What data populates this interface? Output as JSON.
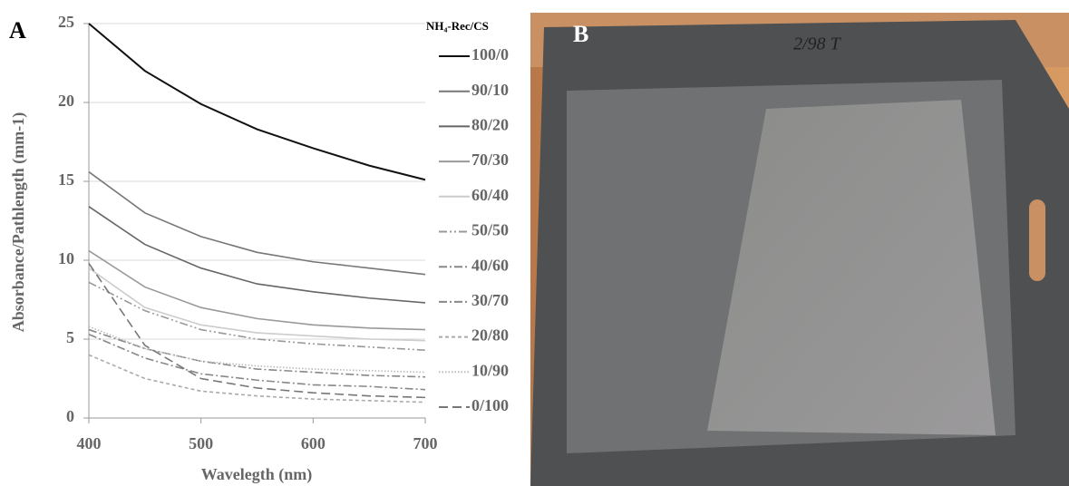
{
  "chart_data": {
    "type": "line",
    "panel_label": "A",
    "x_label": "Wavelegth (nm)",
    "y_label": "Absorbance/Pathlength (mm-1)",
    "legend_title": "NH₄-Rec/CS",
    "x": [
      400,
      450,
      500,
      550,
      600,
      650,
      700
    ],
    "xlim": [
      400,
      700
    ],
    "xticks": [
      400,
      500,
      600,
      700
    ],
    "ylim": [
      0,
      25
    ],
    "yticks": [
      0,
      5,
      10,
      15,
      20,
      25
    ],
    "grid": true,
    "legend": "right",
    "series": [
      {
        "name": "100/0",
        "color": "#111111",
        "dash": "solid",
        "values": [
          25,
          22,
          19.9,
          18.3,
          17.1,
          16.0,
          15.1
        ]
      },
      {
        "name": "90/10",
        "color": "#777777",
        "dash": "solid",
        "values": [
          15.6,
          13.0,
          11.5,
          10.5,
          9.9,
          9.5,
          9.1
        ]
      },
      {
        "name": "80/20",
        "color": "#666666",
        "dash": "solid",
        "values": [
          13.4,
          11.0,
          9.5,
          8.5,
          8.0,
          7.6,
          7.3
        ]
      },
      {
        "name": "70/30",
        "color": "#999999",
        "dash": "solid",
        "values": [
          10.6,
          8.3,
          7.0,
          6.3,
          5.9,
          5.7,
          5.6
        ]
      },
      {
        "name": "60/40",
        "color": "#cccccc",
        "dash": "solid",
        "values": [
          9.5,
          7.0,
          5.9,
          5.4,
          5.2,
          5.0,
          4.9
        ]
      },
      {
        "name": "50/50",
        "color": "#999999",
        "dash": "dashdotdot",
        "values": [
          8.6,
          6.8,
          5.6,
          5.0,
          4.7,
          4.5,
          4.3
        ]
      },
      {
        "name": "40/60",
        "color": "#888888",
        "dash": "dashdot",
        "values": [
          5.6,
          4.4,
          3.6,
          3.1,
          2.9,
          2.7,
          2.6
        ]
      },
      {
        "name": "30/70",
        "color": "#888888",
        "dash": "dashdot",
        "values": [
          5.3,
          3.8,
          2.8,
          2.4,
          2.1,
          2.0,
          1.8
        ]
      },
      {
        "name": "20/80",
        "color": "#aaaaaa",
        "dash": "dashed",
        "values": [
          4.0,
          2.5,
          1.7,
          1.4,
          1.2,
          1.1,
          1.0
        ]
      },
      {
        "name": "10/90",
        "color": "#bbbbbb",
        "dash": "dotted",
        "values": [
          5.8,
          4.4,
          3.6,
          3.3,
          3.1,
          3.0,
          2.9
        ]
      },
      {
        "name": "0/100",
        "color": "#777777",
        "dash": "longdash",
        "values": [
          9.8,
          4.6,
          2.5,
          1.9,
          1.6,
          1.4,
          1.3
        ]
      }
    ]
  },
  "photo": {
    "panel_label": "B",
    "handwriting": "2/98 T"
  }
}
